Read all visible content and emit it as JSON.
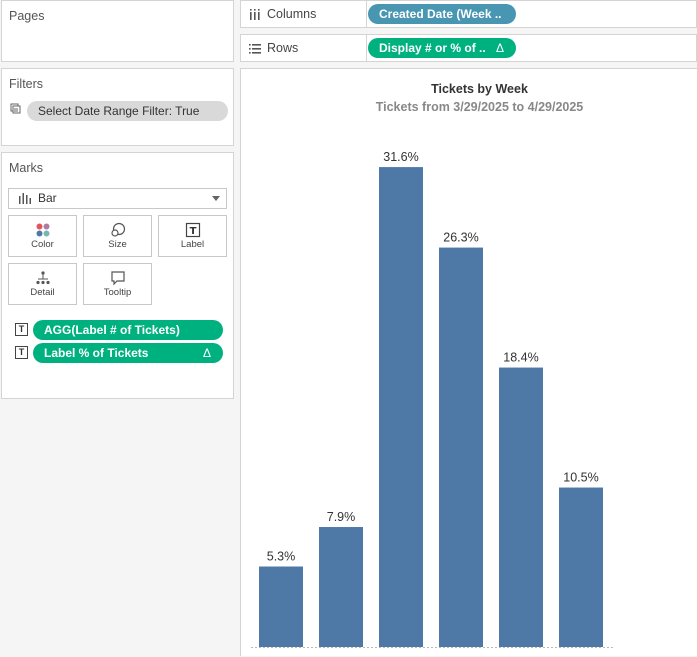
{
  "pages": {
    "title": "Pages"
  },
  "filters": {
    "title": "Filters",
    "pill": "Select Date Range Filter: True"
  },
  "marks": {
    "title": "Marks",
    "mark_type": "Bar",
    "buttons": [
      {
        "label": "Color",
        "icon": "color-dots-icon"
      },
      {
        "label": "Size",
        "icon": "size-icon"
      },
      {
        "label": "Label",
        "icon": "text-label-icon"
      },
      {
        "label": "Detail",
        "icon": "detail-icon"
      },
      {
        "label": "Tooltip",
        "icon": "tooltip-icon"
      }
    ],
    "fields": [
      {
        "text": "AGG(Label # of Tickets)",
        "icon": "T",
        "delta": ""
      },
      {
        "text": "Label % of Tickets",
        "icon": "T",
        "delta": "Δ"
      }
    ]
  },
  "shelves": {
    "columns": {
      "label": "Columns",
      "pill": "Created Date (Week .."
    },
    "rows": {
      "label": "Rows",
      "pill": "Display # or % of ..",
      "delta": "Δ"
    }
  },
  "colors": {
    "bar": "#4e79a7",
    "green_pill": "#00b180",
    "blue_pill": "#4996b2"
  },
  "chart_data": {
    "type": "bar",
    "title": "Tickets by Week",
    "subtitle": "Tickets from 3/29/2025 to 4/29/2025",
    "categories": [
      "",
      "",
      "",
      "",
      "",
      ""
    ],
    "values": [
      5.3,
      7.9,
      31.6,
      26.3,
      18.4,
      10.5
    ],
    "labels": [
      "5.3%",
      "7.9%",
      "31.6%",
      "26.3%",
      "18.4%",
      "10.5%"
    ],
    "ylim": [
      0,
      34.7
    ],
    "grid": false,
    "legend": "none"
  }
}
